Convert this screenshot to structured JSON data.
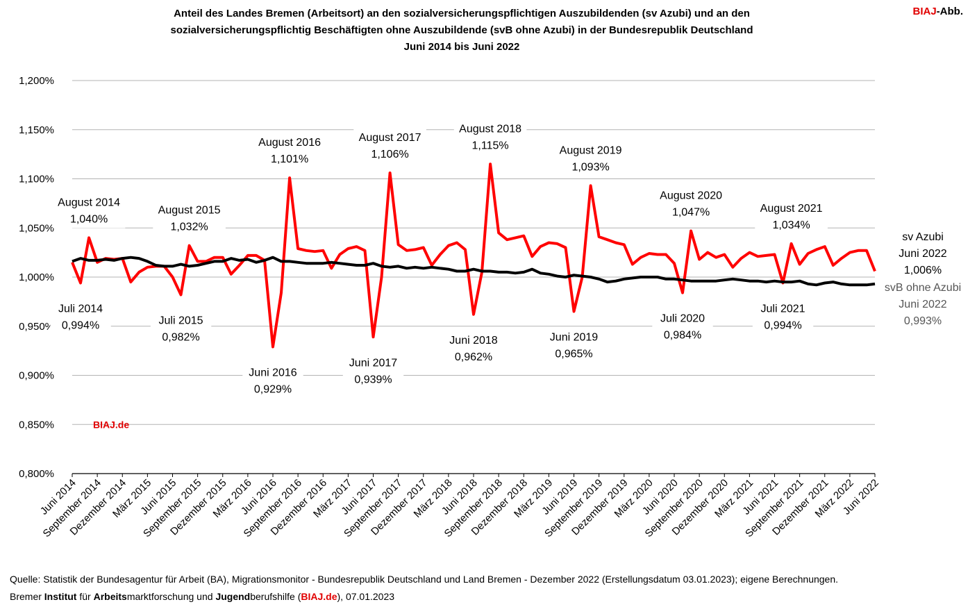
{
  "title": {
    "line1": "Anteil des Landes Bremen (Arbeitsort) an den sozialversicherungspflichtigen Auszubildenden (sv Azubi)  und an den",
    "line2": "sozialversicherungspflichtig Beschäftigten ohne Auszubildende (svB ohne Azubi) in der Bundesrepublik Deutschland",
    "line3": "Juni 2014 bis Juni 2022"
  },
  "badge": {
    "brand": "BIAJ",
    "suffix": "-Abb."
  },
  "watermark": "BIAJ.de",
  "footer": {
    "source": "Quelle: Statistik der Bundesagentur für Arbeit (BA), Migrationsmonitor - Bundesrepublik Deutschland und Land Bremen - Dezember 2022 (Erstellungsdatum 03.01.2023); eigene Berechnungen.",
    "credit_pre": "Bremer ",
    "credit_b1": "Institut",
    "credit_t1": " für ",
    "credit_b2": "Arbeits",
    "credit_t2": "marktforschung und ",
    "credit_b3": "Jugend",
    "credit_t3": "berufshilfe (",
    "credit_link": "BIAJ.de",
    "credit_post": "), 07.01.2023"
  },
  "colors": {
    "azubi": "#ff0000",
    "svb": "#000000",
    "grid": "#b3b3b3",
    "brand": "#e10000"
  },
  "chart_data": {
    "type": "line",
    "ylim": [
      0.8,
      1.2
    ],
    "yticks": [
      0.8,
      0.85,
      0.9,
      0.95,
      1.0,
      1.05,
      1.1,
      1.15,
      1.2
    ],
    "ytick_labels": [
      "0,800%",
      "0,850%",
      "0,900%",
      "0,950%",
      "1,000%",
      "1,050%",
      "1,100%",
      "1,150%",
      "1,200%"
    ],
    "grid": "horizontal",
    "x_start": "2014-06",
    "x_count": 97,
    "xtick_labels": [
      "Juni 2014",
      "September 2014",
      "Dezember 2014",
      "März 2015",
      "Juni 2015",
      "September 2015",
      "Dezember 2015",
      "März 2016",
      "Juni 2016",
      "September 2016",
      "Dezember 2016",
      "März 2017",
      "Juni 2017",
      "September 2017",
      "Dezember 2017",
      "März 2018",
      "Juni 2018",
      "September 2018",
      "Dezember 2018",
      "März 2019",
      "Juni 2019",
      "September 2019",
      "Dezember 2019",
      "März 2020",
      "Juni 2020",
      "September 2020",
      "Dezember 2020",
      "März 2021",
      "Juni 2021",
      "September 2021",
      "Dezember 2021",
      "März 2022",
      "Juni 2022"
    ],
    "series": [
      {
        "name": "sv Azubi",
        "color": "#ff0000",
        "values": [
          1.015,
          0.994,
          1.04,
          1.015,
          1.019,
          1.018,
          1.019,
          0.995,
          1.005,
          1.01,
          1.011,
          1.011,
          1.0,
          0.982,
          1.032,
          1.016,
          1.016,
          1.02,
          1.02,
          1.003,
          1.012,
          1.022,
          1.022,
          1.017,
          0.929,
          0.984,
          1.101,
          1.029,
          1.027,
          1.026,
          1.027,
          1.009,
          1.023,
          1.029,
          1.031,
          1.027,
          0.939,
          1.0,
          1.106,
          1.033,
          1.027,
          1.028,
          1.03,
          1.012,
          1.023,
          1.032,
          1.035,
          1.028,
          0.962,
          1.005,
          1.115,
          1.045,
          1.038,
          1.04,
          1.042,
          1.021,
          1.031,
          1.035,
          1.034,
          1.03,
          0.965,
          1.0,
          1.093,
          1.041,
          1.038,
          1.035,
          1.033,
          1.013,
          1.02,
          1.024,
          1.023,
          1.023,
          1.014,
          0.984,
          1.047,
          1.018,
          1.025,
          1.02,
          1.023,
          1.01,
          1.019,
          1.025,
          1.021,
          1.022,
          1.023,
          0.994,
          1.034,
          1.013,
          1.024,
          1.028,
          1.031,
          1.012,
          1.019,
          1.025,
          1.027,
          1.027,
          1.006
        ]
      },
      {
        "name": "svB ohne Azubi",
        "color": "#000000",
        "values": [
          1.016,
          1.019,
          1.017,
          1.017,
          1.018,
          1.017,
          1.019,
          1.02,
          1.019,
          1.016,
          1.012,
          1.011,
          1.011,
          1.013,
          1.011,
          1.012,
          1.014,
          1.016,
          1.016,
          1.019,
          1.017,
          1.018,
          1.015,
          1.017,
          1.02,
          1.016,
          1.016,
          1.015,
          1.014,
          1.014,
          1.014,
          1.015,
          1.014,
          1.013,
          1.012,
          1.012,
          1.014,
          1.011,
          1.01,
          1.011,
          1.009,
          1.01,
          1.009,
          1.01,
          1.009,
          1.008,
          1.006,
          1.006,
          1.008,
          1.006,
          1.006,
          1.005,
          1.005,
          1.004,
          1.005,
          1.008,
          1.004,
          1.003,
          1.001,
          1.0,
          1.002,
          1.001,
          1.0,
          0.998,
          0.995,
          0.996,
          0.998,
          0.999,
          1.0,
          1.0,
          1.0,
          0.998,
          0.998,
          0.997,
          0.996,
          0.996,
          0.996,
          0.996,
          0.997,
          0.998,
          0.997,
          0.996,
          0.996,
          0.995,
          0.996,
          0.995,
          0.995,
          0.996,
          0.993,
          0.992,
          0.994,
          0.995,
          0.993,
          0.992,
          0.992,
          0.992,
          0.993
        ]
      }
    ],
    "annotations": [
      {
        "label": "August 2014",
        "value": "1,040%",
        "index": 2,
        "pos": "above"
      },
      {
        "label": "Juli 2014",
        "value": "0,994%",
        "index": 1,
        "pos": "below"
      },
      {
        "label": "August 2015",
        "value": "1,032%",
        "index": 14,
        "pos": "above"
      },
      {
        "label": "Juli 2015",
        "value": "0,982%",
        "index": 13,
        "pos": "below"
      },
      {
        "label": "August 2016",
        "value": "1,101%",
        "index": 26,
        "pos": "above"
      },
      {
        "label": "Juni 2016",
        "value": "0,929%",
        "index": 24,
        "pos": "below"
      },
      {
        "label": "August 2017",
        "value": "1,106%",
        "index": 38,
        "pos": "above"
      },
      {
        "label": "Juni 2017",
        "value": "0,939%",
        "index": 36,
        "pos": "below"
      },
      {
        "label": "August 2018",
        "value": "1,115%",
        "index": 50,
        "pos": "above"
      },
      {
        "label": "Juni 2018",
        "value": "0,962%",
        "index": 48,
        "pos": "below"
      },
      {
        "label": "August 2019",
        "value": "1,093%",
        "index": 62,
        "pos": "above"
      },
      {
        "label": "Juni 2019",
        "value": "0,965%",
        "index": 60,
        "pos": "below"
      },
      {
        "label": "August 2020",
        "value": "1,047%",
        "index": 74,
        "pos": "above"
      },
      {
        "label": "Juli 2020",
        "value": "0,984%",
        "index": 73,
        "pos": "below"
      },
      {
        "label": "August 2021",
        "value": "1,034%",
        "index": 86,
        "pos": "above"
      },
      {
        "label": "Juli 2021",
        "value": "0,994%",
        "index": 85,
        "pos": "below"
      }
    ],
    "end_labels": [
      {
        "series": "sv Azubi",
        "lines": [
          "sv Azubi",
          "Juni 2022",
          "1,006%"
        ],
        "color": "#000000"
      },
      {
        "series": "svB ohne Azubi",
        "lines": [
          "svB ohne Azubi",
          "Juni 2022",
          "0,993%"
        ],
        "color": "#555555"
      }
    ]
  }
}
